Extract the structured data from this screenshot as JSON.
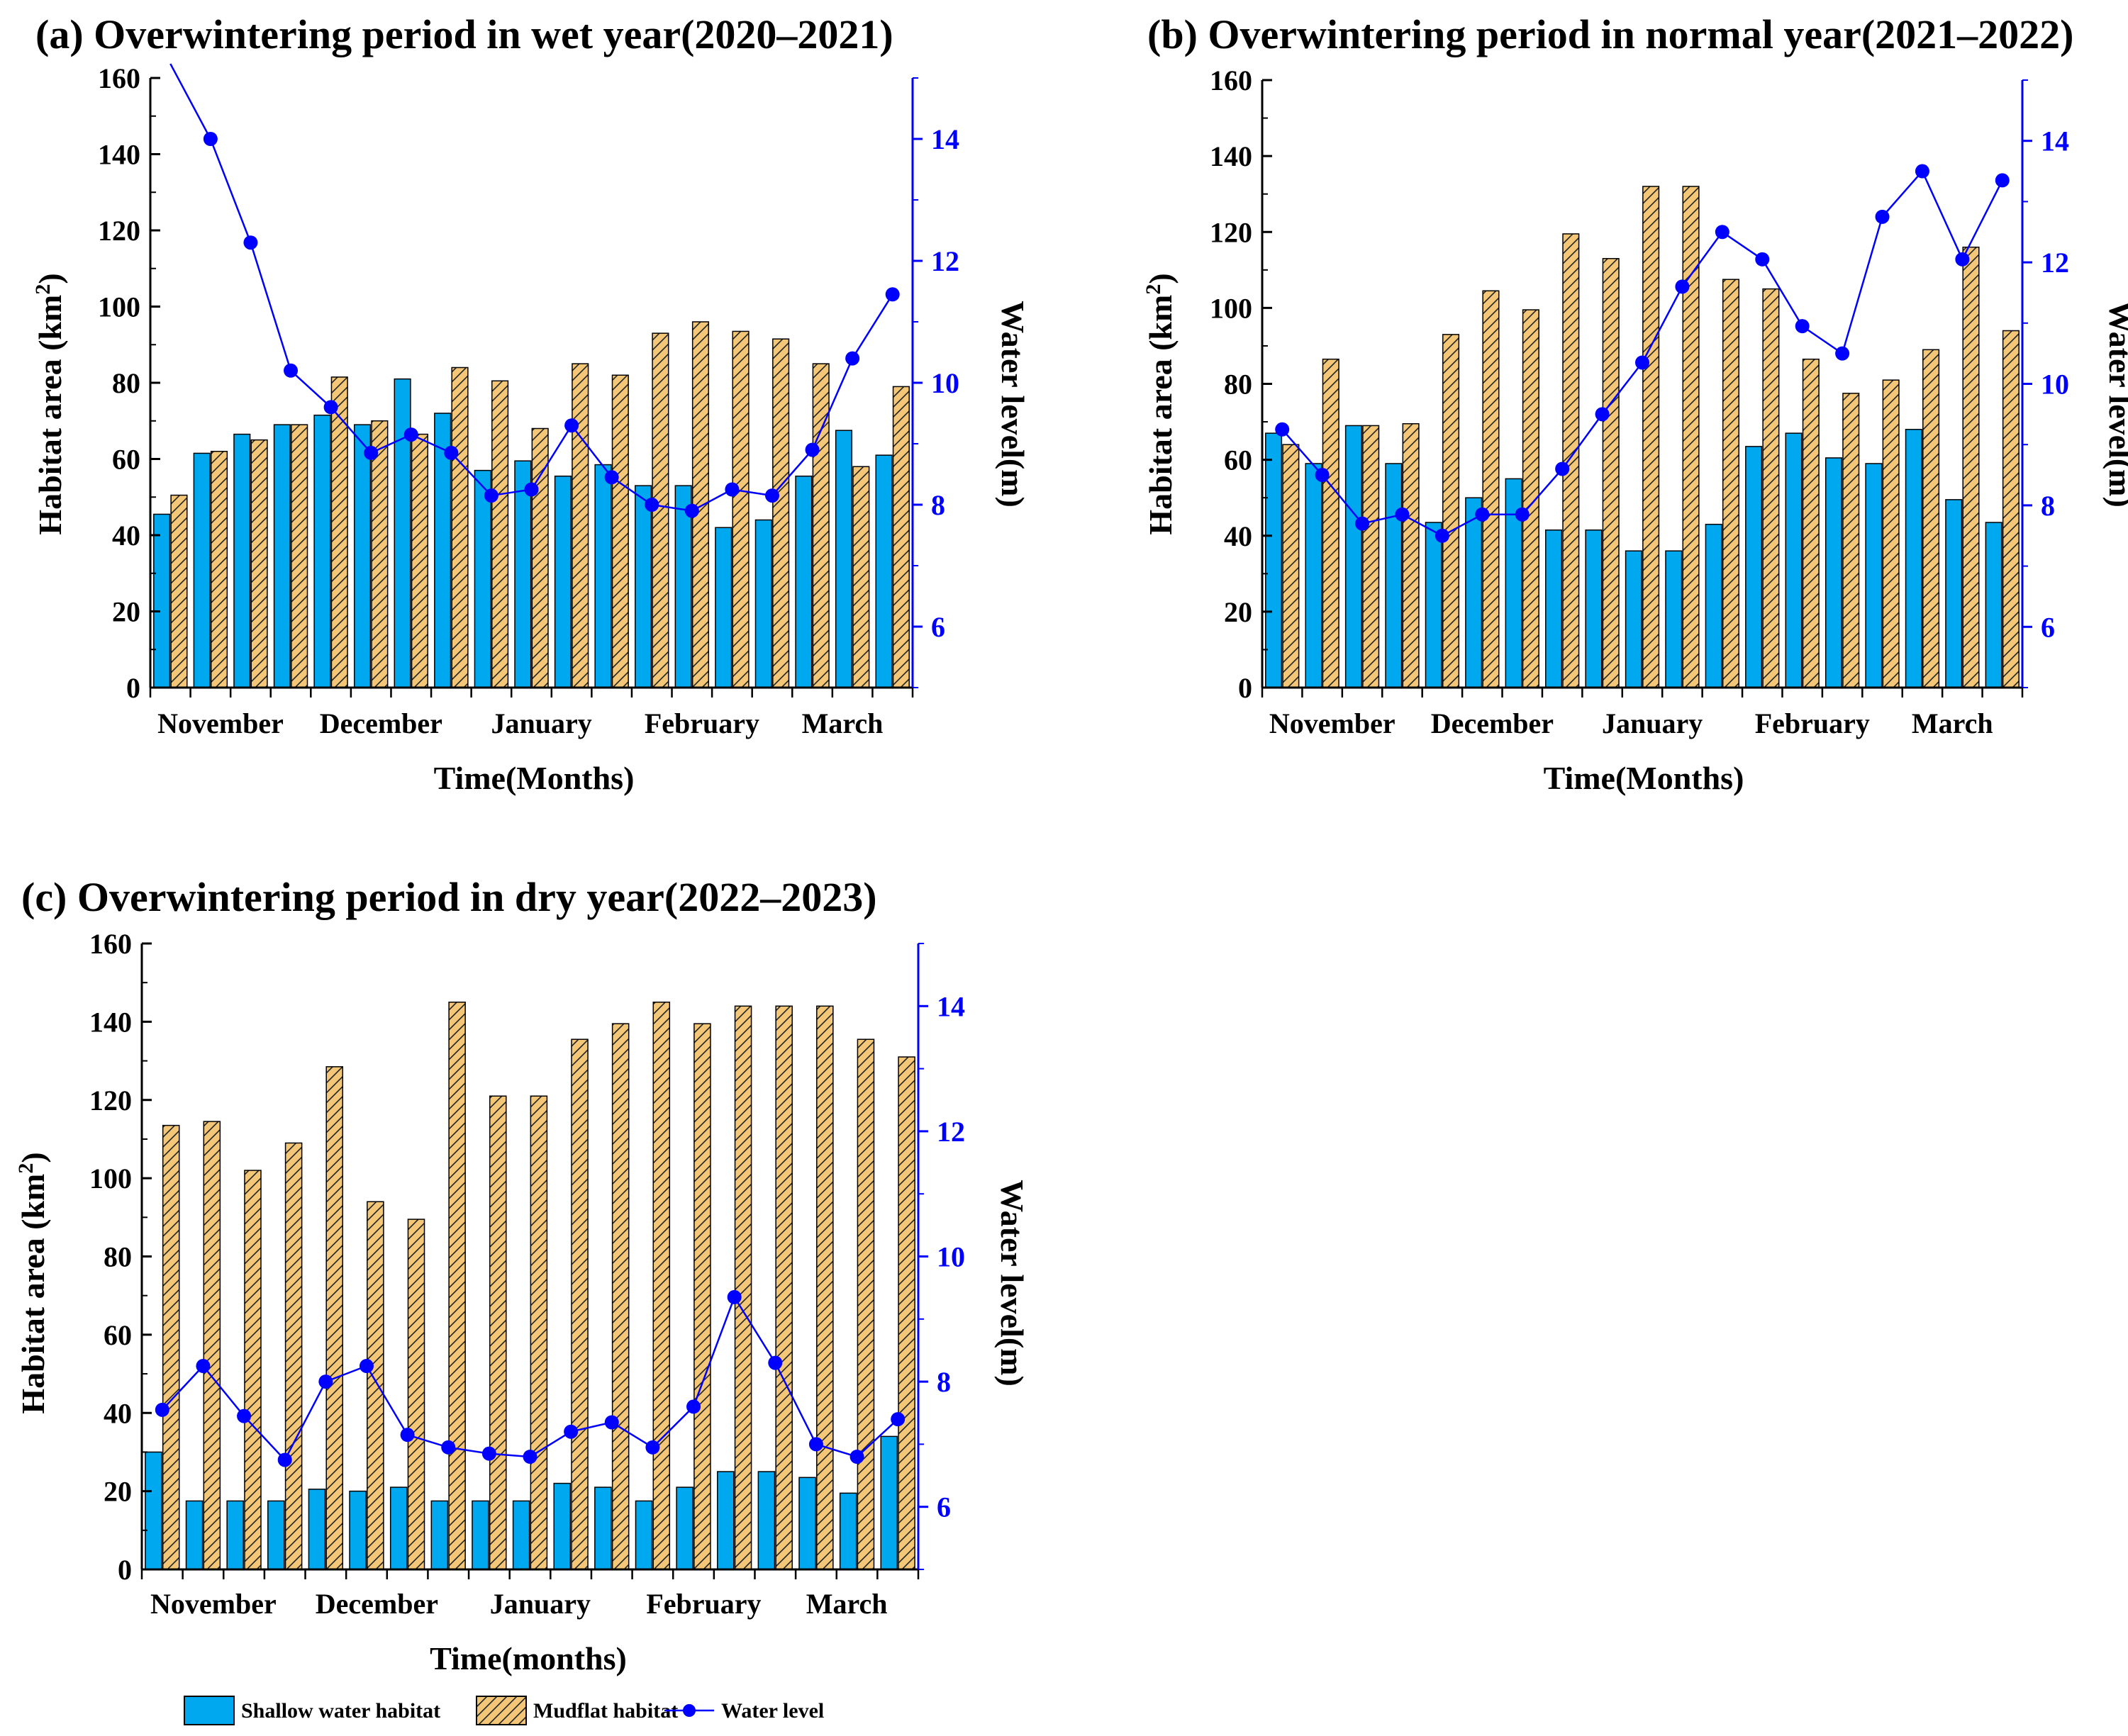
{
  "legend": {
    "shallow": "Shallow water habitat",
    "mudflat": "Mudflat habitat",
    "water": "Water level"
  },
  "colors": {
    "shallow": "#00a8f0",
    "mudflat": "#f3c777",
    "water": "#0000ff",
    "axis": "#000000"
  },
  "chart_data": [
    {
      "type": "bar",
      "panel": "a",
      "title": "(a) Overwintering period in wet year(2020–2021)",
      "xlabel": "Time(Months)",
      "ylabel": "Habitat area (km",
      "ylabel_sup": "2",
      "ylabel_close": ")",
      "y2label": "Water level(m)",
      "ylim": [
        0,
        160
      ],
      "y_ticks": [
        0,
        20,
        40,
        60,
        80,
        100,
        120,
        140,
        160
      ],
      "y2lim": [
        5,
        15
      ],
      "y2_ticks": [
        6,
        8,
        10,
        12,
        14
      ],
      "months": [
        "November",
        "December",
        "January",
        "February",
        "March"
      ],
      "n": 19,
      "series": [
        {
          "name": "Shallow water habitat",
          "values": [
            45.5,
            61.5,
            66.5,
            69,
            71.5,
            69,
            81,
            72,
            57,
            59.5,
            55.5,
            58.5,
            53,
            53,
            42,
            44,
            55.5,
            67.5,
            61
          ]
        },
        {
          "name": "Mudflat habitat",
          "values": [
            50.5,
            62,
            65,
            69,
            81.5,
            70,
            66.5,
            84,
            80.5,
            68,
            85,
            82,
            93,
            96,
            93.5,
            91.5,
            85,
            58,
            79
          ]
        },
        {
          "name": "Water level",
          "values": [
            15.3,
            14.0,
            12.3,
            10.2,
            9.6,
            8.85,
            9.15,
            8.85,
            8.15,
            8.25,
            9.3,
            8.45,
            8.0,
            7.9,
            8.25,
            8.15,
            8.9,
            10.4,
            11.45
          ]
        }
      ]
    },
    {
      "type": "bar",
      "panel": "b",
      "title": "(b) Overwintering period in normal year(2021–2022)",
      "xlabel": "Time(Months)",
      "ylabel": "Habitat area (km",
      "ylabel_sup": "2",
      "ylabel_close": ")",
      "y2label": "Water level(m)",
      "ylim": [
        0,
        160
      ],
      "y_ticks": [
        0,
        20,
        40,
        60,
        80,
        100,
        120,
        140,
        160
      ],
      "y2lim": [
        5,
        15
      ],
      "y2_ticks": [
        6,
        8,
        10,
        12,
        14
      ],
      "months": [
        "November",
        "December",
        "January",
        "February",
        "March"
      ],
      "n": 19,
      "series": [
        {
          "name": "Shallow water habitat",
          "values": [
            67,
            59,
            69,
            59,
            43.5,
            50,
            55,
            41.5,
            41.5,
            36,
            36,
            43,
            63.5,
            67,
            60.5,
            59,
            68,
            49.5,
            43.5
          ]
        },
        {
          "name": "Mudflat habitat",
          "values": [
            64,
            86.5,
            69,
            69.5,
            93,
            104.5,
            99.5,
            119.5,
            113,
            132,
            132,
            107.5,
            105,
            86.5,
            77.5,
            81,
            89,
            116,
            94
          ]
        },
        {
          "name": "Water level",
          "values": [
            9.25,
            8.5,
            7.7,
            7.85,
            7.5,
            7.85,
            7.85,
            8.6,
            9.5,
            10.35,
            11.6,
            12.5,
            12.05,
            10.95,
            10.5,
            12.75,
            13.5,
            12.05,
            13.35
          ]
        }
      ]
    },
    {
      "type": "bar",
      "panel": "c",
      "title": "(c) Overwintering period in dry year(2022–2023)",
      "xlabel": "Time(months)",
      "ylabel": "Habitat area (km",
      "ylabel_sup": "2",
      "ylabel_close": ")",
      "y2label": "Water level(m)",
      "ylim": [
        0,
        160
      ],
      "y_ticks": [
        0,
        20,
        40,
        60,
        80,
        100,
        120,
        140,
        160
      ],
      "y2lim": [
        5,
        15
      ],
      "y2_ticks": [
        6,
        8,
        10,
        12,
        14
      ],
      "months": [
        "November",
        "December",
        "January",
        "February",
        "March"
      ],
      "n": 19,
      "series": [
        {
          "name": "Shallow water habitat",
          "values": [
            30,
            17.5,
            17.5,
            17.5,
            20.5,
            20,
            21,
            17.5,
            17.5,
            17.5,
            22,
            21,
            17.5,
            21,
            25,
            25,
            23.5,
            19.5,
            34
          ]
        },
        {
          "name": "Mudflat habitat",
          "values": [
            113.5,
            114.5,
            102,
            109,
            128.5,
            94,
            89.5,
            145,
            121,
            121,
            135.5,
            139.5,
            145,
            139.5,
            144,
            144,
            144,
            135.5,
            131
          ]
        },
        {
          "name": "Water level",
          "values": [
            7.55,
            8.25,
            7.45,
            6.75,
            8.0,
            8.25,
            7.15,
            6.95,
            6.85,
            6.8,
            7.2,
            7.35,
            6.95,
            7.6,
            9.35,
            8.3,
            7.0,
            6.8,
            7.4
          ]
        }
      ]
    }
  ]
}
